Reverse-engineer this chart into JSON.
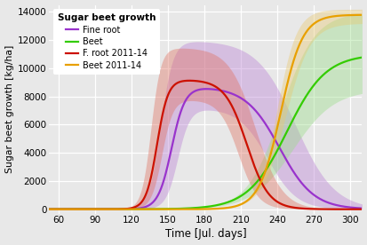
{
  "title": "Sugar beet growth",
  "xlabel": "Time [Jul. days]",
  "ylabel": "Sugar beet growth [kg/ha]",
  "xlim": [
    52,
    310
  ],
  "ylim": [
    -300,
    14500
  ],
  "xticks": [
    60,
    90,
    120,
    150,
    180,
    210,
    240,
    270,
    300
  ],
  "yticks": [
    0,
    2000,
    4000,
    6000,
    8000,
    10000,
    12000,
    14000
  ],
  "bg_color": "#e8e8e8",
  "fine_root": {
    "color": "#9933cc",
    "shade_color": "#b97fd4",
    "rise_c": 153,
    "rise_s": 5.5,
    "fall_c": 242,
    "fall_s": 14,
    "peak": 8700,
    "upper_rise_c": 144,
    "upper_rise_s": 5,
    "upper_fall_c": 255,
    "upper_fall_s": 16,
    "upper_peak": 12000,
    "lower_rise_c": 158,
    "lower_rise_s": 5,
    "lower_fall_c": 232,
    "lower_fall_s": 12,
    "lower_peak": 7200
  },
  "beet": {
    "color": "#33cc00",
    "shade_color": "#99dd88",
    "rise_c": 248,
    "rise_s": 16,
    "peak": 11000,
    "upper_rise_c": 243,
    "upper_rise_s": 14,
    "upper_peak": 14000,
    "lower_rise_c": 253,
    "lower_rise_s": 17,
    "lower_peak": 8500
  },
  "fine_root_2011": {
    "color": "#cc1100",
    "shade_color": "#e07060",
    "rise_c": 141,
    "rise_s": 4.5,
    "fall_c": 215,
    "fall_s": 9,
    "peak": 9200,
    "upper_rise_c": 136,
    "upper_rise_s": 4,
    "upper_fall_c": 222,
    "upper_fall_s": 11,
    "upper_peak": 11500,
    "lower_rise_c": 145,
    "lower_rise_s": 4.5,
    "lower_fall_c": 208,
    "lower_fall_s": 8,
    "lower_peak": 7800
  },
  "beet_2011": {
    "color": "#e8a000",
    "shade_color": "#e8c870",
    "rise_c": 243,
    "rise_s": 9,
    "peak": 13800,
    "upper_rise_c": 240,
    "upper_rise_s": 8,
    "upper_peak": 14200,
    "lower_rise_c": 247,
    "lower_rise_s": 10,
    "lower_peak": 13200
  }
}
